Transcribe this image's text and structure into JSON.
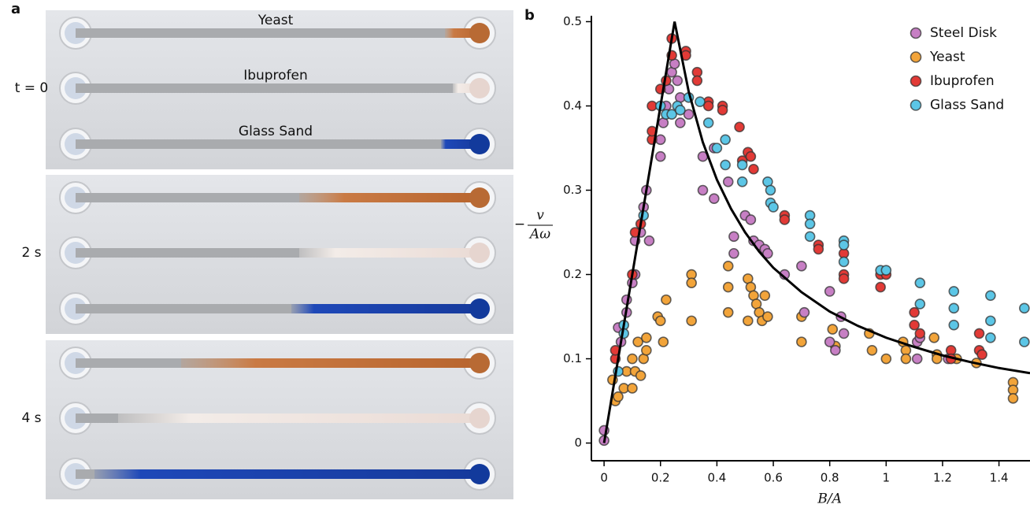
{
  "panel_a": {
    "label": "a",
    "materials": [
      "Yeast",
      "Ibuprofen",
      "Glass Sand"
    ],
    "times": [
      "t = 0",
      "2 s",
      "4 s"
    ]
  },
  "chart_data": {
    "type": "scatter",
    "label": "b",
    "xlabel": "B/A",
    "ylabel_sign": "−",
    "ylabel_numerator": "v",
    "ylabel_denominator": "Aω",
    "xlim": [
      -0.045,
      1.51
    ],
    "ylim": [
      -0.021,
      0.507
    ],
    "xticks": [
      0,
      0.2,
      0.4,
      0.6,
      0.8,
      1,
      1.2,
      1.4
    ],
    "yticks": [
      0,
      0.1,
      0.2,
      0.3,
      0.4,
      0.5
    ],
    "legend": "upper right",
    "series": [
      {
        "name": "Steel Disk",
        "color": "#c77fc4",
        "x": [
          0,
          0,
          0.05,
          0.06,
          0.08,
          0.08,
          0.1,
          0.11,
          0.11,
          0.13,
          0.14,
          0.15,
          0.16,
          0.2,
          0.2,
          0.21,
          0.22,
          0.23,
          0.24,
          0.25,
          0.26,
          0.27,
          0.27,
          0.3,
          0.35,
          0.35,
          0.39,
          0.39,
          0.44,
          0.46,
          0.46,
          0.5,
          0.52,
          0.53,
          0.55,
          0.57,
          0.58,
          0.64,
          0.7,
          0.71,
          0.8,
          0.8,
          0.82,
          0.84,
          0.85,
          1.11,
          1.11,
          1.12,
          1.22
        ],
        "values": [
          0.003,
          0.015,
          0.137,
          0.12,
          0.155,
          0.17,
          0.19,
          0.2,
          0.24,
          0.25,
          0.28,
          0.3,
          0.24,
          0.34,
          0.36,
          0.38,
          0.4,
          0.42,
          0.44,
          0.45,
          0.43,
          0.41,
          0.38,
          0.39,
          0.34,
          0.3,
          0.29,
          0.35,
          0.31,
          0.245,
          0.225,
          0.27,
          0.265,
          0.24,
          0.235,
          0.23,
          0.225,
          0.2,
          0.21,
          0.155,
          0.18,
          0.12,
          0.11,
          0.15,
          0.13,
          0.1,
          0.12,
          0.125,
          0.1
        ]
      },
      {
        "name": "Yeast",
        "color": "#f2a43a",
        "x": [
          0.03,
          0.04,
          0.05,
          0.07,
          0.08,
          0.1,
          0.1,
          0.11,
          0.12,
          0.13,
          0.14,
          0.15,
          0.15,
          0.19,
          0.2,
          0.21,
          0.22,
          0.31,
          0.31,
          0.31,
          0.44,
          0.44,
          0.44,
          0.51,
          0.51,
          0.52,
          0.53,
          0.54,
          0.55,
          0.56,
          0.57,
          0.58,
          0.7,
          0.7,
          0.81,
          0.82,
          0.94,
          0.95,
          1,
          1.06,
          1.07,
          1.07,
          1.17,
          1.18,
          1.18,
          1.25,
          1.32,
          1.45,
          1.45,
          1.45
        ],
        "values": [
          0.075,
          0.05,
          0.055,
          0.065,
          0.085,
          0.1,
          0.065,
          0.085,
          0.12,
          0.08,
          0.1,
          0.125,
          0.11,
          0.15,
          0.145,
          0.12,
          0.17,
          0.2,
          0.19,
          0.145,
          0.21,
          0.185,
          0.155,
          0.195,
          0.145,
          0.185,
          0.175,
          0.165,
          0.155,
          0.145,
          0.175,
          0.15,
          0.12,
          0.15,
          0.135,
          0.115,
          0.13,
          0.11,
          0.1,
          0.12,
          0.11,
          0.1,
          0.125,
          0.105,
          0.1,
          0.1,
          0.095,
          0.072,
          0.063,
          0.053
        ]
      },
      {
        "name": "Ibuprofen",
        "color": "#e23a36",
        "x": [
          0.04,
          0.04,
          0.1,
          0.11,
          0.13,
          0.17,
          0.17,
          0.17,
          0.2,
          0.22,
          0.24,
          0.24,
          0.29,
          0.29,
          0.33,
          0.33,
          0.37,
          0.37,
          0.42,
          0.42,
          0.48,
          0.49,
          0.51,
          0.52,
          0.53,
          0.64,
          0.64,
          0.76,
          0.76,
          0.85,
          0.85,
          0.85,
          0.98,
          0.98,
          1,
          1.1,
          1.1,
          1.12,
          1.23,
          1.23,
          1.33,
          1.33,
          1.34
        ],
        "values": [
          0.1,
          0.11,
          0.2,
          0.25,
          0.26,
          0.36,
          0.37,
          0.4,
          0.42,
          0.43,
          0.46,
          0.48,
          0.465,
          0.46,
          0.44,
          0.43,
          0.405,
          0.4,
          0.4,
          0.395,
          0.375,
          0.335,
          0.345,
          0.34,
          0.325,
          0.27,
          0.265,
          0.235,
          0.23,
          0.225,
          0.2,
          0.195,
          0.2,
          0.185,
          0.2,
          0.155,
          0.14,
          0.13,
          0.11,
          0.1,
          0.13,
          0.11,
          0.105
        ]
      },
      {
        "name": "Glass Sand",
        "color": "#5cc6e6",
        "x": [
          0.05,
          0.07,
          0.07,
          0.14,
          0.2,
          0.22,
          0.24,
          0.26,
          0.27,
          0.3,
          0.34,
          0.37,
          0.4,
          0.43,
          0.43,
          0.49,
          0.49,
          0.58,
          0.59,
          0.59,
          0.6,
          0.73,
          0.73,
          0.73,
          0.85,
          0.85,
          0.85,
          0.98,
          1,
          1.12,
          1.12,
          1.24,
          1.24,
          1.24,
          1.37,
          1.37,
          1.37,
          1.49,
          1.49
        ],
        "values": [
          0.085,
          0.14,
          0.13,
          0.27,
          0.4,
          0.39,
          0.39,
          0.4,
          0.395,
          0.41,
          0.405,
          0.38,
          0.35,
          0.36,
          0.33,
          0.33,
          0.31,
          0.31,
          0.3,
          0.285,
          0.28,
          0.27,
          0.26,
          0.245,
          0.24,
          0.235,
          0.215,
          0.205,
          0.205,
          0.19,
          0.165,
          0.18,
          0.16,
          0.14,
          0.175,
          0.145,
          0.125,
          0.16,
          0.12
        ]
      },
      {
        "type": "line",
        "color": "#000000",
        "x": [
          0,
          0.25,
          0.3,
          0.35,
          0.4,
          0.45,
          0.5,
          0.55,
          0.6,
          0.7,
          0.8,
          0.9,
          1,
          1.1,
          1.2,
          1.3,
          1.4,
          1.51
        ],
        "values": [
          0,
          0.5,
          0.417,
          0.357,
          0.3125,
          0.278,
          0.25,
          0.227,
          0.208,
          0.179,
          0.156,
          0.139,
          0.125,
          0.114,
          0.104,
          0.096,
          0.089,
          0.083
        ]
      }
    ]
  }
}
